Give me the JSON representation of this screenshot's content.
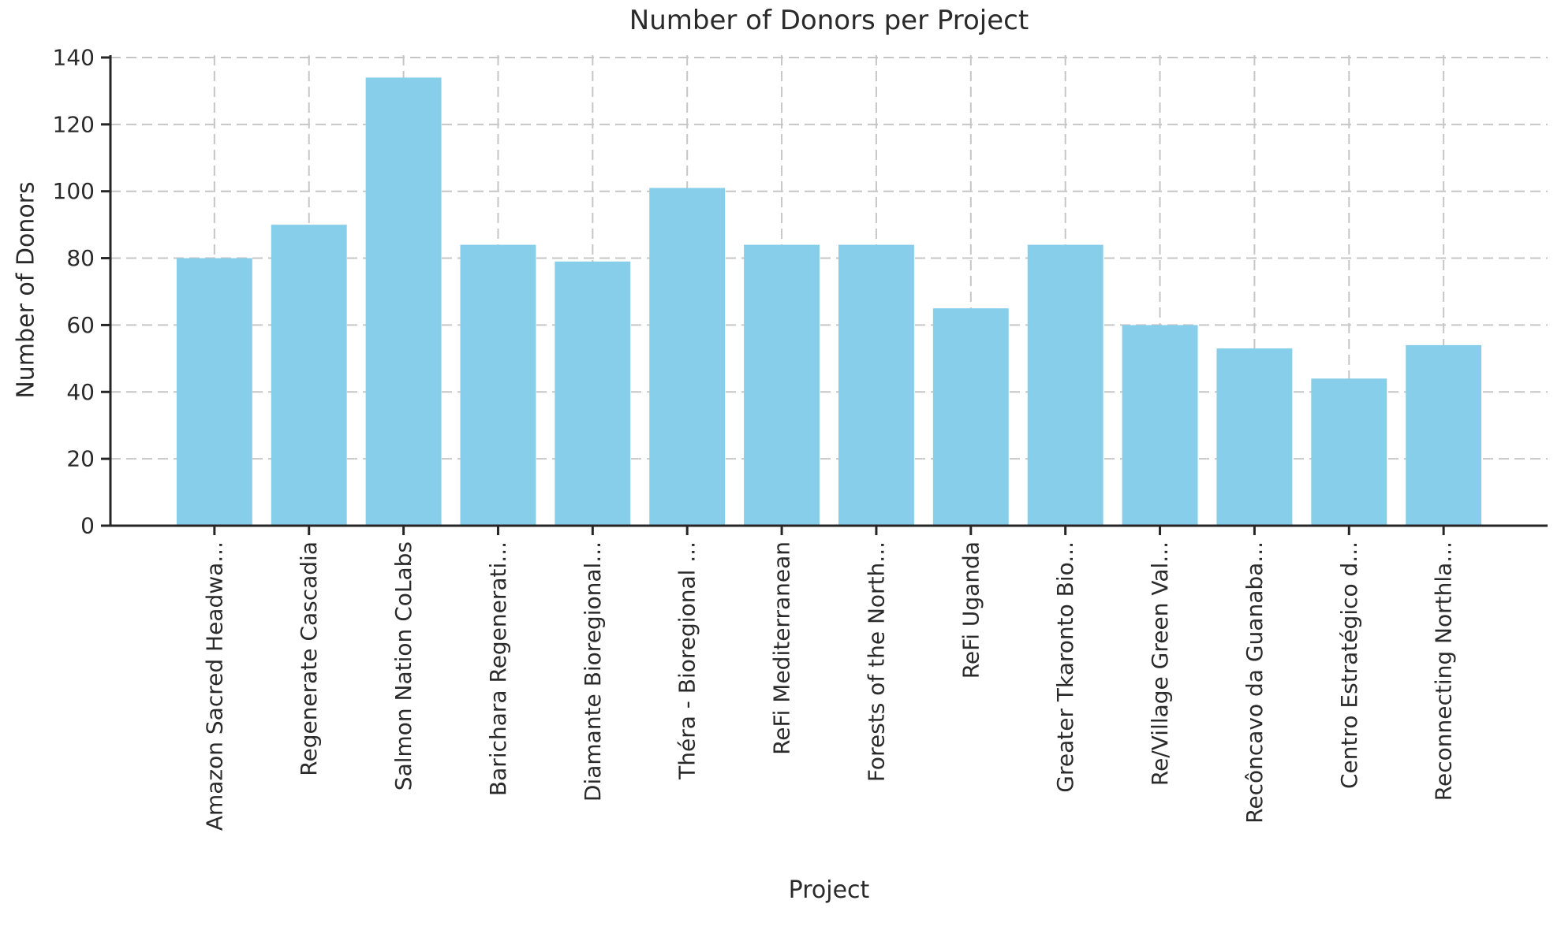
{
  "chart_data": {
    "type": "bar",
    "title": "Number of Donors per Project",
    "xlabel": "Project",
    "ylabel": "Number of Donors",
    "categories": [
      "Amazon Sacred Headwa...",
      "Regenerate Cascadia",
      "Salmon Nation CoLabs",
      "Barichara Regenerati...",
      "Diamante Bioregional...",
      "Théra - Bioregional ...",
      "ReFi Mediterranean",
      "Forests of the North...",
      "ReFi Uganda",
      "Greater Tkaronto Bio...",
      "Re/Village Green Val...",
      "Recôncavo da Guanaba...",
      "Centro Estratégico d...",
      "Reconnecting Northla..."
    ],
    "values": [
      80,
      90,
      134,
      84,
      79,
      101,
      84,
      84,
      65,
      84,
      60,
      53,
      44,
      54
    ],
    "yticks": [
      0,
      20,
      40,
      60,
      80,
      100,
      120,
      140
    ],
    "ylim": [
      0,
      140.7
    ],
    "grid": "dashed",
    "legend": "none",
    "bar_color": "#87CEEB",
    "grid_color": "#c6c6c6",
    "spine_color": "#262626",
    "text_color": "#2a2a2a",
    "background": "#ffffff"
  }
}
